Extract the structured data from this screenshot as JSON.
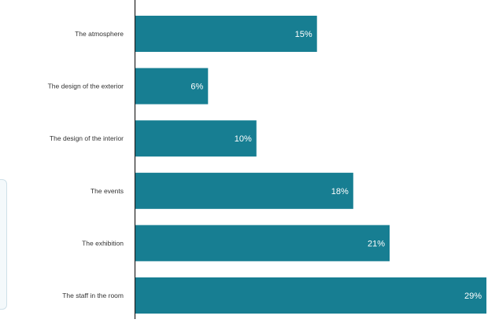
{
  "chart_data": {
    "type": "bar",
    "orientation": "horizontal",
    "categories": [
      "The atmosphere",
      "The design of the exterior",
      "The design of the interior",
      "The events",
      "The exhibition",
      "The staff in the room"
    ],
    "values": [
      15,
      6,
      10,
      18,
      21,
      29
    ],
    "value_labels": [
      "15%",
      "6%",
      "10%",
      "18%",
      "21%",
      "29%"
    ],
    "xlim": [
      0,
      29
    ],
    "grid": false,
    "title": "",
    "xlabel": "",
    "ylabel": "",
    "colors": {
      "bar": "#177e92",
      "label": "#ffffff",
      "category": "#333333",
      "axis": "#222222"
    }
  }
}
